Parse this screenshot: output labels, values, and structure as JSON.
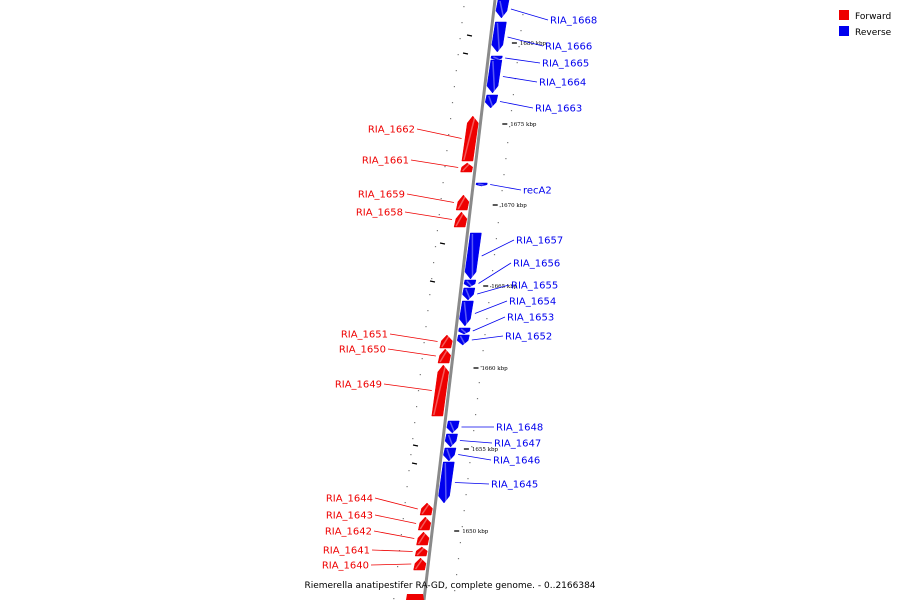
{
  "legend": [
    {
      "label": "Forward",
      "color": "#ee0000"
    },
    {
      "label": "Reverse",
      "color": "#0000ee"
    }
  ],
  "caption": "Riemerella anatipestifer RA-GD, complete genome. - 0..2166384",
  "colors": {
    "forward": "#ee0000",
    "reverse": "#0000ee",
    "backbone": "#8a8a8a",
    "tick": "#000000"
  },
  "scale_ticks": [
    "1680 kbp",
    "1675 kbp",
    "1670 kbp",
    "1665 kbp",
    "1660 kbp",
    "1655 kbp",
    "1650 kbp"
  ],
  "reverse_genes": [
    "RIA_1668",
    "RIA_1666",
    "RIA_1665",
    "RIA_1664",
    "RIA_1663",
    "recA2",
    "RIA_1657",
    "RIA_1656",
    "RIA_1655",
    "RIA_1654",
    "RIA_1653",
    "RIA_1652",
    "RIA_1648",
    "RIA_1647",
    "RIA_1646",
    "RIA_1645"
  ],
  "forward_genes": [
    "RIA_1662",
    "RIA_1661",
    "RIA_1659",
    "RIA_1658",
    "RIA_1651",
    "RIA_1650",
    "RIA_1649",
    "RIA_1644",
    "RIA_1643",
    "RIA_1642",
    "RIA_1641",
    "RIA_1640"
  ]
}
